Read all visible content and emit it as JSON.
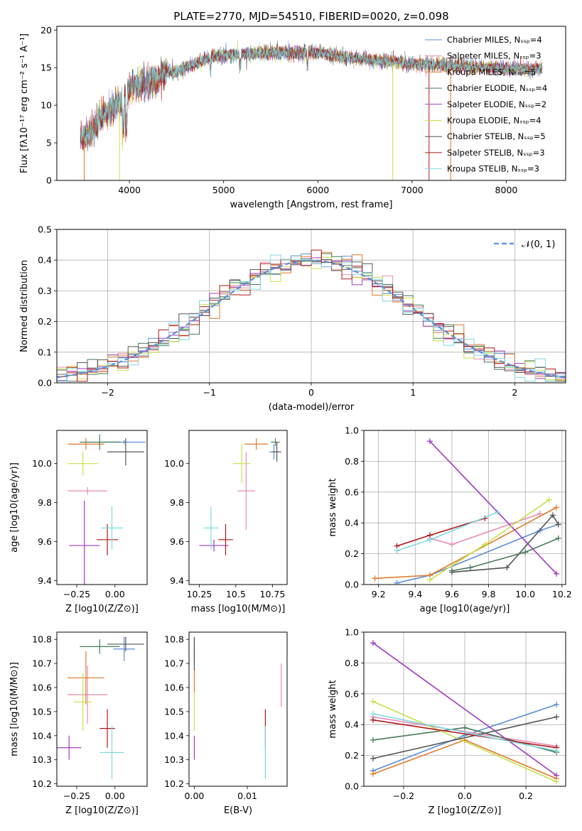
{
  "chart_data": [
    {
      "id": "spectrum",
      "type": "line",
      "title": "PLATE=2770, MJD=54510, FIBERID=0020, z=0.098",
      "xlabel": "wavelength [Angstrom, rest frame]",
      "ylabel": "Flux [fλ10⁻¹⁷ erg cm⁻² s⁻¹ A⁻¹]",
      "xlim": [
        3230,
        8630
      ],
      "ylim": [
        0,
        20.5
      ],
      "xticks": [
        4000,
        5000,
        6000,
        7000,
        8000
      ],
      "yticks": [
        0,
        5,
        10,
        15,
        20
      ],
      "legend": "upper-right",
      "series": [
        {
          "name": "Chabrier MILES, Nₛₛₚ=4",
          "color": "#5b8ed6"
        },
        {
          "name": "Salpeter MILES, Nₛₛₚ=3",
          "color": "#e98bb7"
        },
        {
          "name": "Kroupa MILES, Nₛₛₚ=5",
          "color": "#e07a2a"
        },
        {
          "name": "Chabrier ELODIE, Nₛₛₚ=4",
          "color": "#4a7a5a"
        },
        {
          "name": "Salpeter ELODIE, Nₛₛₚ=2",
          "color": "#a03cc0"
        },
        {
          "name": "Kroupa ELODIE, Nₛₛₚ=4",
          "color": "#c8e04a"
        },
        {
          "name": "Chabrier STELIB, Nₛₛₚ=5",
          "color": "#555555"
        },
        {
          "name": "Salpeter STELIB, Nₛₛₚ=3",
          "color": "#b01818"
        },
        {
          "name": "Kroupa STELIB, Nₛₛₚ=3",
          "color": "#80d8e0"
        }
      ],
      "continuum": {
        "x": [
          3500,
          3600,
          3700,
          3800,
          3900,
          4000,
          4100,
          4200,
          4300,
          4400,
          4500,
          4700,
          4900,
          5200,
          5500,
          5800,
          6000,
          6300,
          6600,
          7000,
          7400,
          7800,
          8200,
          8400
        ],
        "y": [
          5.5,
          6.5,
          8.5,
          9.5,
          10.5,
          12.5,
          12.5,
          13.0,
          13.5,
          14.5,
          14.5,
          15.5,
          16.5,
          16.8,
          17.0,
          17.0,
          17.0,
          16.3,
          16.0,
          15.5,
          15.3,
          15.0,
          14.8,
          14.8
        ]
      }
    },
    {
      "id": "residuals",
      "type": "line",
      "xlabel": "(data-model)/error",
      "ylabel": "Normed distribution",
      "xlim": [
        -2.5,
        2.5
      ],
      "ylim": [
        0,
        0.5
      ],
      "xticks": [
        -2,
        -1,
        0,
        1,
        2
      ],
      "yticks": [
        0.0,
        0.1,
        0.2,
        0.3,
        0.4,
        0.5
      ],
      "grid": true,
      "legend": "upper-right",
      "reference": {
        "name": "𝒩(0, 1)",
        "color": "#5b8ed6",
        "style": "dashed"
      },
      "bin_width": 0.1
    },
    {
      "id": "age-vs-Z",
      "type": "scatter",
      "xlabel": "Z [log10(Z/Z⊙)]",
      "ylabel": "age  [log10(age/yr)]",
      "xlim": [
        -0.38,
        0.21
      ],
      "ylim": [
        9.38,
        10.17
      ],
      "xticks": [
        -0.25,
        0.0
      ],
      "yticks": [
        9.4,
        9.6,
        9.8,
        10.0
      ],
      "points": [
        {
          "x": 0.06,
          "y": 10.11,
          "xerr": 0.14,
          "yerr": 0.01,
          "color": "#5b8ed6"
        },
        {
          "x": -0.18,
          "y": 9.86,
          "xerr": 0.13,
          "yerr": 0.02,
          "color": "#e98bb7"
        },
        {
          "x": -0.19,
          "y": 10.1,
          "xerr": 0.12,
          "yerr": 0.03,
          "color": "#e07a2a"
        },
        {
          "x": -0.1,
          "y": 10.11,
          "xerr": 0.13,
          "yerr": 0.04,
          "color": "#4a7a5a"
        },
        {
          "x": -0.2,
          "y": 9.58,
          "xerr": 0.1,
          "yerr": 0.23,
          "color": "#a03cc0"
        },
        {
          "x": -0.21,
          "y": 10.0,
          "xerr": 0.1,
          "yerr": 0.06,
          "color": "#c8e04a"
        },
        {
          "x": 0.07,
          "y": 10.06,
          "xerr": 0.12,
          "yerr": 0.07,
          "color": "#555555"
        },
        {
          "x": -0.05,
          "y": 9.61,
          "xerr": 0.07,
          "yerr": 0.08,
          "color": "#b01818"
        },
        {
          "x": -0.02,
          "y": 9.67,
          "xerr": 0.07,
          "yerr": 0.11,
          "color": "#80d8e0"
        }
      ]
    },
    {
      "id": "age-vs-mass",
      "type": "scatter",
      "xlabel": "mass [log10(M/M⊙)]",
      "ylabel": "",
      "xlim": [
        10.18,
        10.85
      ],
      "ylim": [
        9.38,
        10.17
      ],
      "xticks": [
        10.25,
        10.5,
        10.75
      ],
      "yticks": [
        9.4,
        9.6,
        9.8,
        10.0
      ],
      "points": [
        {
          "x": 10.76,
          "y": 10.06,
          "xerr": 0.03,
          "yerr": 0.04,
          "color": "#5b8ed6"
        },
        {
          "x": 10.57,
          "y": 9.86,
          "xerr": 0.06,
          "yerr": 0.2,
          "color": "#e98bb7"
        },
        {
          "x": 10.64,
          "y": 10.1,
          "xerr": 0.08,
          "yerr": 0.03,
          "color": "#e07a2a"
        },
        {
          "x": 10.77,
          "y": 10.11,
          "xerr": 0.03,
          "yerr": 0.02,
          "color": "#4a7a5a"
        },
        {
          "x": 10.35,
          "y": 9.58,
          "xerr": 0.1,
          "yerr": 0.03,
          "color": "#a03cc0"
        },
        {
          "x": 10.54,
          "y": 10.0,
          "xerr": 0.06,
          "yerr": 0.1,
          "color": "#c8e04a"
        },
        {
          "x": 10.78,
          "y": 10.06,
          "xerr": 0.03,
          "yerr": 0.05,
          "color": "#555555"
        },
        {
          "x": 10.43,
          "y": 9.61,
          "xerr": 0.05,
          "yerr": 0.08,
          "color": "#b01818"
        },
        {
          "x": 10.33,
          "y": 9.67,
          "xerr": 0.05,
          "yerr": 0.11,
          "color": "#80d8e0"
        }
      ]
    },
    {
      "id": "weight-vs-age",
      "type": "line",
      "xlabel": "age  [log10(age/yr)]",
      "ylabel": "mass weight",
      "xlim": [
        9.12,
        10.22
      ],
      "ylim": [
        0,
        1
      ],
      "xticks": [
        9.2,
        9.4,
        9.6,
        9.8,
        10.0,
        10.2
      ],
      "yticks": [
        0.0,
        0.2,
        0.4,
        0.6,
        0.8,
        1.0
      ],
      "grid": true,
      "series": [
        {
          "color": "#5b8ed6",
          "x": [
            9.3,
            9.48,
            10.08,
            10.18
          ],
          "y": [
            0.01,
            0.06,
            0.35,
            0.39
          ]
        },
        {
          "color": "#e98bb7",
          "x": [
            9.48,
            9.6,
            10.08
          ],
          "y": [
            0.3,
            0.26,
            0.46
          ]
        },
        {
          "color": "#e07a2a",
          "x": [
            9.18,
            9.48,
            10.17
          ],
          "y": [
            0.04,
            0.06,
            0.5
          ]
        },
        {
          "color": "#4a7a5a",
          "x": [
            9.6,
            9.7,
            10.0,
            10.18
          ],
          "y": [
            0.09,
            0.11,
            0.21,
            0.3
          ]
        },
        {
          "color": "#a03cc0",
          "x": [
            9.48,
            10.17
          ],
          "y": [
            0.93,
            0.07
          ]
        },
        {
          "color": "#c8e04a",
          "x": [
            9.48,
            9.78,
            10.13
          ],
          "y": [
            0.03,
            0.26,
            0.55
          ]
        },
        {
          "color": "#555555",
          "x": [
            9.6,
            9.9,
            10.15,
            10.18
          ],
          "y": [
            0.08,
            0.11,
            0.45,
            0.39
          ]
        },
        {
          "color": "#b01818",
          "x": [
            9.3,
            9.48,
            9.78
          ],
          "y": [
            0.25,
            0.32,
            0.43
          ]
        },
        {
          "color": "#80d8e0",
          "x": [
            9.3,
            9.48,
            9.85
          ],
          "y": [
            0.22,
            0.29,
            0.47
          ]
        }
      ]
    },
    {
      "id": "mass-vs-Z",
      "type": "scatter",
      "xlabel": "Z [log10(Z/Z⊙)]",
      "ylabel": "mass [log10(M/M⊙)]",
      "xlim": [
        -0.38,
        0.21
      ],
      "ylim": [
        10.19,
        10.83
      ],
      "xticks": [
        -0.25,
        0.0
      ],
      "yticks": [
        10.2,
        10.3,
        10.4,
        10.5,
        10.6,
        10.7,
        10.8
      ],
      "points": [
        {
          "x": 0.06,
          "y": 10.76,
          "xerr": 0.07,
          "yerr": 0.05,
          "color": "#5b8ed6"
        },
        {
          "x": -0.18,
          "y": 10.57,
          "xerr": 0.13,
          "yerr": 0.12,
          "color": "#e98bb7"
        },
        {
          "x": -0.19,
          "y": 10.64,
          "xerr": 0.12,
          "yerr": 0.11,
          "color": "#e07a2a"
        },
        {
          "x": -0.1,
          "y": 10.77,
          "xerr": 0.13,
          "yerr": 0.03,
          "color": "#4a7a5a"
        },
        {
          "x": -0.3,
          "y": 10.35,
          "xerr": 0.08,
          "yerr": 0.05,
          "color": "#a03cc0"
        },
        {
          "x": -0.21,
          "y": 10.54,
          "xerr": 0.06,
          "yerr": 0.12,
          "color": "#c8e04a"
        },
        {
          "x": 0.07,
          "y": 10.78,
          "xerr": 0.12,
          "yerr": 0.03,
          "color": "#555555"
        },
        {
          "x": -0.05,
          "y": 10.43,
          "xerr": 0.05,
          "yerr": 0.08,
          "color": "#b01818"
        },
        {
          "x": -0.02,
          "y": 10.33,
          "xerr": 0.08,
          "yerr": 0.11,
          "color": "#80d8e0"
        }
      ]
    },
    {
      "id": "mass-vs-EBV",
      "type": "scatter",
      "xlabel": "E(B-V)",
      "ylabel": "",
      "xlim": [
        -0.001,
        0.0175
      ],
      "ylim": [
        10.19,
        10.83
      ],
      "xticks": [
        0.0,
        0.01
      ],
      "yticks": [
        10.2,
        10.3,
        10.4,
        10.5,
        10.6,
        10.7,
        10.8
      ],
      "points": [
        {
          "x": 0.0,
          "y": 10.76,
          "xerr": 0,
          "yerr": 0.05,
          "color": "#5b8ed6"
        },
        {
          "x": 0.0164,
          "y": 10.61,
          "xerr": 0,
          "yerr": 0.09,
          "color": "#e98bb7"
        },
        {
          "x": 0.0,
          "y": 10.62,
          "xerr": 0,
          "yerr": 0.06,
          "color": "#e07a2a"
        },
        {
          "x": 0.0,
          "y": 10.74,
          "xerr": 0,
          "yerr": 0.05,
          "color": "#4a7a5a"
        },
        {
          "x": 0.0,
          "y": 10.35,
          "xerr": 0,
          "yerr": 0.05,
          "color": "#a03cc0"
        },
        {
          "x": 0.0,
          "y": 10.5,
          "xerr": 0,
          "yerr": 0.08,
          "color": "#c8e04a"
        },
        {
          "x": 0.0,
          "y": 10.74,
          "xerr": 0,
          "yerr": 0.07,
          "color": "#555555"
        },
        {
          "x": 0.0134,
          "y": 10.43,
          "xerr": 0,
          "yerr": 0.08,
          "color": "#b01818"
        },
        {
          "x": 0.0134,
          "y": 10.33,
          "xerr": 0,
          "yerr": 0.11,
          "color": "#80d8e0"
        }
      ]
    },
    {
      "id": "weight-vs-Z",
      "type": "line",
      "xlabel": "Z [log10(Z/Z⊙)]",
      "ylabel": "mass weight",
      "xlim": [
        -0.33,
        0.33
      ],
      "ylim": [
        0,
        1
      ],
      "xticks": [
        -0.2,
        0.0,
        0.2
      ],
      "yticks": [
        0.0,
        0.2,
        0.4,
        0.6,
        0.8,
        1.0
      ],
      "grid": true,
      "series": [
        {
          "color": "#5b8ed6",
          "x": [
            -0.3,
            0.0,
            0.3
          ],
          "y": [
            0.1,
            0.33,
            0.53
          ]
        },
        {
          "color": "#e98bb7",
          "x": [
            -0.3,
            0.3
          ],
          "y": [
            0.45,
            0.26
          ]
        },
        {
          "color": "#e07a2a",
          "x": [
            -0.3,
            0.0,
            0.3
          ],
          "y": [
            0.08,
            0.3,
            0.05
          ]
        },
        {
          "color": "#4a7a5a",
          "x": [
            -0.3,
            0.0,
            0.3
          ],
          "y": [
            0.3,
            0.38,
            0.22
          ]
        },
        {
          "color": "#a03cc0",
          "x": [
            -0.3,
            0.3
          ],
          "y": [
            0.93,
            0.07
          ]
        },
        {
          "color": "#c8e04a",
          "x": [
            -0.3,
            0.3
          ],
          "y": [
            0.55,
            0.03
          ]
        },
        {
          "color": "#555555",
          "x": [
            -0.3,
            0.3
          ],
          "y": [
            0.18,
            0.45
          ]
        },
        {
          "color": "#b01818",
          "x": [
            -0.3,
            0.3
          ],
          "y": [
            0.43,
            0.25
          ]
        },
        {
          "color": "#80d8e0",
          "x": [
            -0.3,
            0.3
          ],
          "y": [
            0.47,
            0.23
          ]
        }
      ]
    }
  ]
}
